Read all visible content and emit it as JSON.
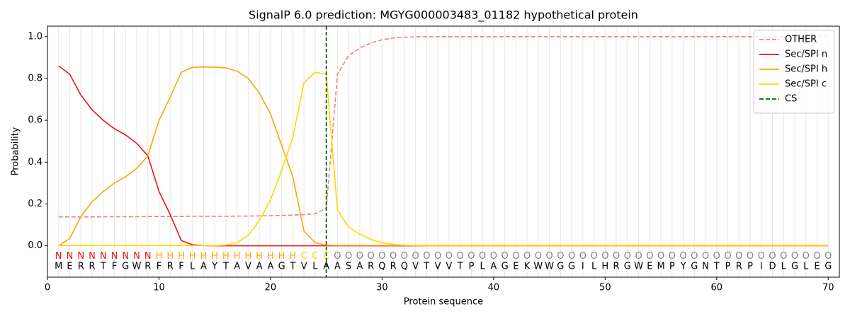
{
  "chart_data": {
    "type": "line",
    "title": "SignalP 6.0 prediction: MGYG000003483_01182 hypothetical protein",
    "xlabel": "Protein sequence",
    "ylabel": "Probability",
    "xlim": [
      0,
      71
    ],
    "ylim": [
      -0.15,
      1.05
    ],
    "xticks": [
      0,
      10,
      20,
      30,
      40,
      50,
      60,
      70
    ],
    "yticks": [
      {
        "value": 0,
        "label": "0.0"
      },
      {
        "value": 0.2,
        "label": "0.2"
      },
      {
        "value": 0.4,
        "label": "0.4"
      },
      {
        "value": 0.6,
        "label": "0.6"
      },
      {
        "value": 0.8,
        "label": "0.8"
      },
      {
        "value": 1,
        "label": "1.0"
      }
    ],
    "x": [
      1,
      2,
      3,
      4,
      5,
      6,
      7,
      8,
      9,
      10,
      11,
      12,
      13,
      14,
      15,
      16,
      17,
      18,
      19,
      20,
      21,
      22,
      23,
      24,
      25,
      26,
      27,
      28,
      29,
      30,
      31,
      32,
      33,
      34,
      35,
      36,
      37,
      38,
      39,
      40,
      41,
      42,
      43,
      44,
      45,
      46,
      47,
      48,
      49,
      50,
      51,
      52,
      53,
      54,
      55,
      56,
      57,
      58,
      59,
      60,
      61,
      62,
      63,
      64,
      65,
      66,
      67,
      68,
      69,
      70
    ],
    "series": [
      {
        "name": "OTHER",
        "color": "#f08080",
        "dash": true,
        "values": [
          0.138,
          0.138,
          0.138,
          0.138,
          0.139,
          0.139,
          0.139,
          0.139,
          0.14,
          0.14,
          0.14,
          0.14,
          0.141,
          0.141,
          0.141,
          0.141,
          0.142,
          0.142,
          0.143,
          0.144,
          0.145,
          0.147,
          0.149,
          0.153,
          0.18,
          0.82,
          0.91,
          0.945,
          0.97,
          0.985,
          0.993,
          0.997,
          0.999,
          1,
          1,
          1,
          1,
          1,
          1,
          1,
          1,
          1,
          1,
          1,
          1,
          1,
          1,
          1,
          1,
          1,
          1,
          1,
          1,
          1,
          1,
          1,
          1,
          1,
          1,
          1,
          1,
          1,
          1,
          1,
          1,
          1,
          1,
          1,
          1,
          1
        ]
      },
      {
        "name": "Sec/SPI n",
        "color": "#ee1111",
        "dash": false,
        "values": [
          0.86,
          0.82,
          0.72,
          0.65,
          0.6,
          0.56,
          0.53,
          0.49,
          0.43,
          0.26,
          0.15,
          0.025,
          0.005,
          0.001,
          0,
          0,
          0,
          0,
          0,
          0,
          0,
          0,
          0,
          0,
          0,
          0,
          0,
          0,
          0,
          0,
          0,
          0,
          0,
          0,
          0,
          0,
          0,
          0,
          0,
          0,
          0,
          0,
          0,
          0,
          0,
          0,
          0,
          0,
          0,
          0,
          0,
          0,
          0,
          0,
          0,
          0,
          0,
          0,
          0,
          0,
          0,
          0,
          0,
          0,
          0,
          0,
          0,
          0,
          0,
          0
        ]
      },
      {
        "name": "Sec/SPI h",
        "color": "#ffa500",
        "dash": false,
        "values": [
          0,
          0.035,
          0.14,
          0.21,
          0.26,
          0.3,
          0.33,
          0.37,
          0.43,
          0.6,
          0.71,
          0.83,
          0.853,
          0.855,
          0.854,
          0.85,
          0.835,
          0.8,
          0.73,
          0.63,
          0.48,
          0.33,
          0.07,
          0.015,
          0.003,
          0.002,
          0.002,
          0.002,
          0.002,
          0.002,
          0.002,
          0.002,
          0.002,
          0.002,
          0.002,
          0.002,
          0.002,
          0.002,
          0.002,
          0.002,
          0.002,
          0.002,
          0.002,
          0.002,
          0.002,
          0.002,
          0.002,
          0.002,
          0.002,
          0.002,
          0.002,
          0.002,
          0.002,
          0.002,
          0.002,
          0.002,
          0.002,
          0.002,
          0.002,
          0.002,
          0.002,
          0.002,
          0.002,
          0.002,
          0.002,
          0.002,
          0.002,
          0.002,
          0.002,
          0.002
        ]
      },
      {
        "name": "Sec/SPI c",
        "color": "#ffd700",
        "dash": false,
        "values": [
          0.001,
          0.001,
          0.001,
          0.001,
          0.001,
          0.001,
          0.001,
          0.001,
          0.001,
          0.001,
          0.001,
          0.001,
          0.001,
          0.001,
          0.001,
          0.003,
          0.015,
          0.05,
          0.12,
          0.22,
          0.36,
          0.52,
          0.78,
          0.83,
          0.82,
          0.17,
          0.09,
          0.055,
          0.03,
          0.015,
          0.007,
          0.003,
          0.001,
          0,
          0,
          0,
          0,
          0,
          0,
          0,
          0,
          0,
          0,
          0,
          0,
          0,
          0,
          0,
          0,
          0,
          0,
          0,
          0,
          0,
          0,
          0,
          0,
          0,
          0,
          0,
          0,
          0,
          0,
          0,
          0,
          0,
          0,
          0,
          0,
          0
        ]
      }
    ],
    "cs": {
      "name": "CS",
      "x": 25,
      "color": "#006400"
    },
    "region_labels": [
      "N",
      "N",
      "N",
      "N",
      "N",
      "N",
      "N",
      "N",
      "N",
      "H",
      "H",
      "H",
      "H",
      "H",
      "H",
      "H",
      "H",
      "H",
      "H",
      "H",
      "H",
      "H",
      "C",
      "C",
      "C",
      "O",
      "O",
      "O",
      "O",
      "O",
      "O",
      "O",
      "O",
      "O",
      "O",
      "O",
      "O",
      "O",
      "O",
      "O",
      "O",
      "O",
      "O",
      "O",
      "O",
      "O",
      "O",
      "O",
      "O",
      "O",
      "O",
      "O",
      "O",
      "O",
      "O",
      "O",
      "O",
      "O",
      "O",
      "O",
      "O",
      "O",
      "O",
      "O",
      "O",
      "O",
      "O",
      "O",
      "O",
      "O"
    ],
    "label_colors": {
      "N": "#ee1111",
      "H": "#ffa500",
      "C": "#ffd700",
      "O": "#808080"
    },
    "residues": [
      "M",
      "E",
      "R",
      "R",
      "T",
      "F",
      "G",
      "W",
      "R",
      "F",
      "R",
      "F",
      "L",
      "A",
      "Y",
      "T",
      "A",
      "V",
      "A",
      "A",
      "G",
      "T",
      "V",
      "L",
      "A",
      "A",
      "S",
      "A",
      "R",
      "Q",
      "R",
      "Q",
      "V",
      "T",
      "V",
      "V",
      "T",
      "P",
      "L",
      "A",
      "G",
      "E",
      "K",
      "W",
      "W",
      "G",
      "G",
      "I",
      "L",
      "H",
      "R",
      "G",
      "W",
      "E",
      "M",
      "P",
      "Y",
      "G",
      "N",
      "T",
      "P",
      "R",
      "P",
      "I",
      "D",
      "L",
      "G",
      "L",
      "E",
      "G"
    ],
    "grid": true,
    "legend": "upper right"
  }
}
